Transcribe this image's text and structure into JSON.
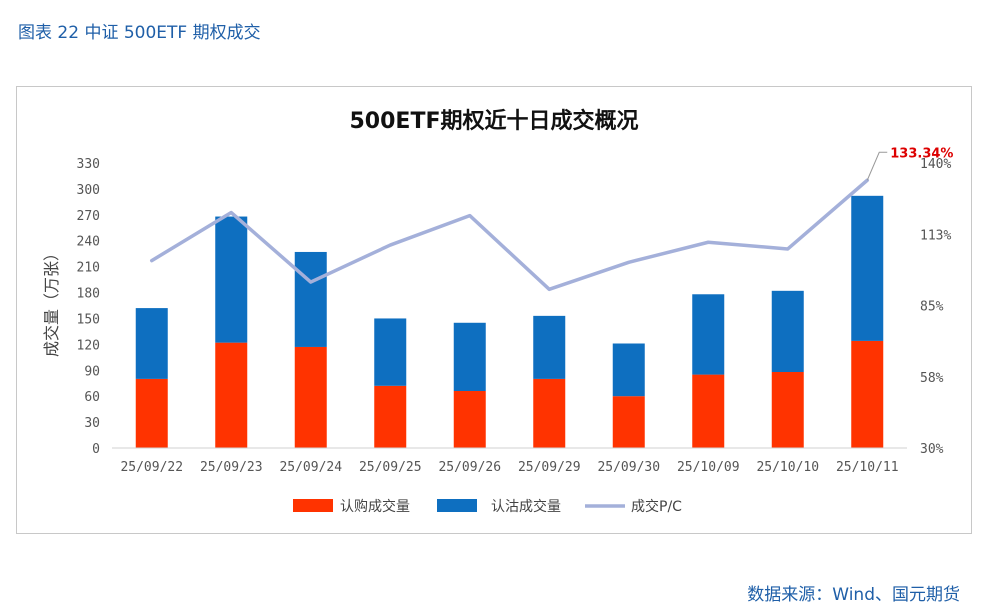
{
  "caption": "图表 22 中证 500ETF 期权成交",
  "source": "数据来源：Wind、国元期货",
  "colors": {
    "call": "#ff3300",
    "put": "#0e6fc0",
    "pc": "#a4b0da",
    "annot": "#dd0000",
    "caption": "#1f5fa8"
  },
  "chart_data": {
    "type": "bar",
    "title": "500ETF期权近十日成交概况",
    "ylabel": "成交量（万张）",
    "xlabel": "",
    "categories": [
      "25/09/22",
      "25/09/23",
      "25/09/24",
      "25/09/25",
      "25/09/26",
      "25/09/29",
      "25/09/30",
      "25/10/09",
      "25/10/10",
      "25/10/11"
    ],
    "series": [
      {
        "name": "认购成交量",
        "type": "bar",
        "stack": "volume",
        "values": [
          80,
          122,
          117,
          72,
          66,
          80,
          60,
          85,
          88,
          124
        ]
      },
      {
        "name": "认沽成交量",
        "type": "bar",
        "stack": "volume",
        "values": [
          82,
          146,
          110,
          78,
          79,
          73,
          61,
          93,
          94,
          168
        ]
      },
      {
        "name": "成交P/C",
        "type": "line",
        "axis": "right",
        "values": [
          1.0233,
          1.2088,
          0.9404,
          1.0833,
          1.197,
          0.9125,
          1.0167,
          1.0941,
          1.0682,
          1.3334
        ]
      }
    ],
    "ylim": [
      0,
      330
    ],
    "yticks": [
      "0",
      "30",
      "60",
      "90",
      "120",
      "150",
      "180",
      "210",
      "240",
      "270",
      "300",
      "330"
    ],
    "y2lim": [
      0.3,
      1.4
    ],
    "y2ticks": [
      "30%",
      "58%",
      "85%",
      "113%",
      "140%"
    ],
    "annotation": {
      "text": "133.34%",
      "category_index": 9
    },
    "legend_position": "bottom",
    "grid": false
  }
}
